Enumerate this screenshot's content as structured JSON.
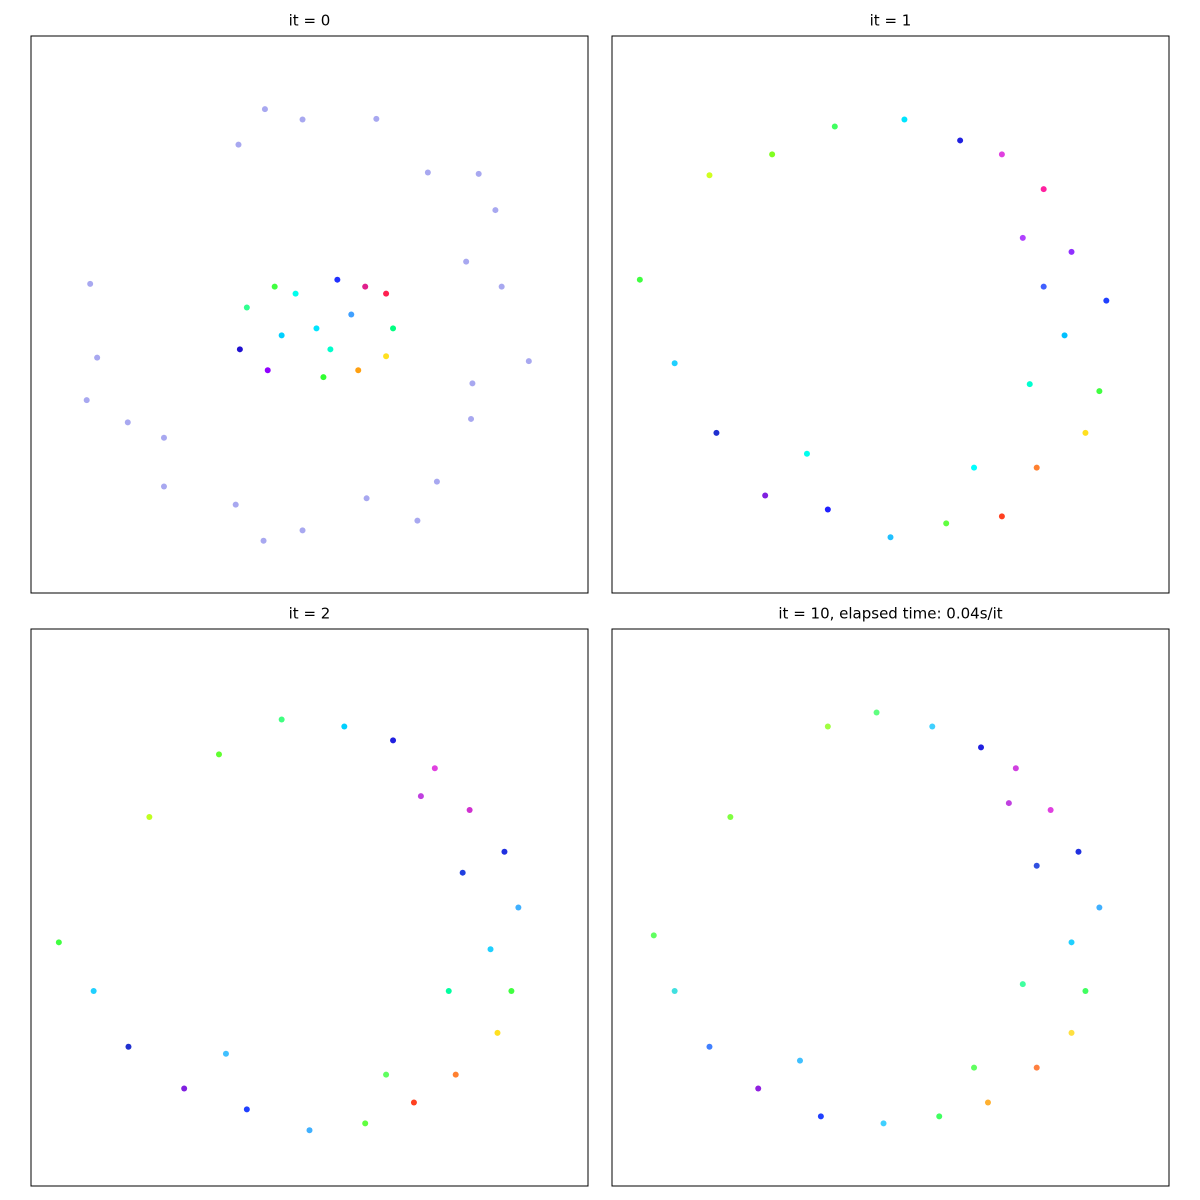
{
  "chart_data": [
    {
      "type": "scatter",
      "title": "it = 0",
      "xlim": [
        -4,
        4
      ],
      "ylim": [
        -4,
        4
      ],
      "x": [
        -0.1,
        0.96,
        1.7,
        2.67,
        2.76,
        3.15,
        2.32,
        1.83,
        0.82,
        -0.1,
        -1.06,
        -2.09,
        -2.61,
        -3.05,
        -3.15,
        -1.02,
        -0.64,
        2.43,
        2.34,
        1.55,
        -0.66,
        -2.09,
        -3.2,
        2.25,
        0.1,
        0.8,
        1.1,
        0.4,
        -0.5,
        -0.9,
        -1.0,
        -0.6,
        0.2,
        0.7,
        1.1,
        1.2,
        -0.2,
        0.3,
        0.6,
        -0.4
      ],
      "y": [
        2.8,
        2.81,
        2.04,
        1.5,
        0.4,
        -0.67,
        -1.5,
        -2.4,
        -2.64,
        -3.1,
        -2.73,
        -2.47,
        -1.55,
        -0.62,
        0.44,
        2.44,
        2.95,
        2.02,
        -0.99,
        -2.96,
        -3.25,
        -1.77,
        -1.23,
        0.76,
        -0.2,
        0.4,
        0.3,
        0.5,
        0.4,
        0.1,
        -0.5,
        -0.8,
        -0.9,
        -0.8,
        -0.6,
        -0.2,
        0.3,
        -0.5,
        0.0,
        -0.3
      ],
      "colors": [
        "#a8a8f0",
        "#a8a8f0",
        "#a8a8f0",
        "#a8a8f0",
        "#a8a8f0",
        "#a8a8f0",
        "#a8a8f0",
        "#a8a8f0",
        "#a8a8f0",
        "#a8a8f0",
        "#a8a8f0",
        "#a8a8f0",
        "#a8a8f0",
        "#a8a8f0",
        "#a8a8f0",
        "#a8a8f0",
        "#a8a8f0",
        "#a8a8f0",
        "#a8a8f0",
        "#a8a8f0",
        "#a8a8f0",
        "#a8a8f0",
        "#a8a8f0",
        "#a8a8f0",
        "#00e5ff",
        "#e0208c",
        "#ff2050",
        "#2030ff",
        "#40ff40",
        "#30ff90",
        "#2010d0",
        "#9000ff",
        "#30ff30",
        "#ffa010",
        "#ffe020",
        "#00ff80",
        "#00ffee",
        "#00ffcc",
        "#40a0ff",
        "#00d0ff"
      ]
    },
    {
      "type": "scatter",
      "title": "it = 1",
      "xlim": [
        -4,
        4
      ],
      "ylim": [
        -4,
        4
      ],
      "x": [
        -1.7,
        -0.8,
        0.2,
        1.0,
        1.6,
        2.2,
        2.6,
        3.1,
        2.5,
        3.0,
        2.8,
        2.1,
        1.6,
        0.8,
        0.0,
        -0.9,
        -1.8,
        -2.5,
        -3.1,
        -3.6,
        -2.6,
        2.0,
        1.2,
        -1.2,
        2.2,
        1.9
      ],
      "y": [
        2.3,
        2.7,
        2.8,
        2.5,
        2.3,
        1.8,
        0.9,
        0.2,
        -0.3,
        -1.1,
        -1.7,
        -2.2,
        -2.9,
        -3.0,
        -3.2,
        -2.8,
        -2.6,
        -1.7,
        -0.7,
        0.5,
        2.0,
        -1.0,
        -2.2,
        -2.0,
        0.4,
        1.1
      ],
      "colors": [
        "#80ff20",
        "#40ff60",
        "#00e5ff",
        "#2020e0",
        "#e040e0",
        "#ff20a0",
        "#9030ff",
        "#2040ff",
        "#00c0ff",
        "#40ff40",
        "#ffe020",
        "#ff8030",
        "#ff4020",
        "#60ff40",
        "#20c0ff",
        "#2020ff",
        "#8020e0",
        "#2030d0",
        "#20d0ff",
        "#40ff40",
        "#d0ff20",
        "#00ffd0",
        "#00ffff",
        "#00ffee",
        "#4060ff",
        "#b040ff"
      ]
    },
    {
      "type": "scatter",
      "title": "it = 2",
      "xlim": [
        -4,
        4
      ],
      "ylim": [
        -4,
        4
      ],
      "x": [
        -1.3,
        -0.4,
        0.5,
        1.2,
        1.8,
        2.3,
        2.8,
        3.0,
        2.6,
        2.9,
        2.7,
        2.1,
        1.5,
        0.8,
        0.0,
        -0.9,
        -1.8,
        -2.6,
        -3.1,
        -3.6,
        -2.3,
        2.0,
        1.1,
        -1.2,
        2.2,
        1.6
      ],
      "y": [
        2.2,
        2.7,
        2.6,
        2.4,
        2.0,
        1.4,
        0.8,
        0.0,
        -0.6,
        -1.2,
        -1.8,
        -2.4,
        -2.8,
        -3.1,
        -3.2,
        -2.9,
        -2.6,
        -2.0,
        -1.2,
        -0.5,
        1.3,
        -1.2,
        -2.4,
        -2.1,
        0.5,
        1.6
      ],
      "colors": [
        "#60ff30",
        "#40ff80",
        "#00d0ff",
        "#2020e0",
        "#e040e0",
        "#d030d0",
        "#2030e0",
        "#40b0ff",
        "#20d0ff",
        "#40ff40",
        "#ffe020",
        "#ff8030",
        "#ff4020",
        "#60ff40",
        "#40b0ff",
        "#2040ff",
        "#8020e0",
        "#2030d0",
        "#20d0ff",
        "#40ff40",
        "#c0ff20",
        "#00ffa0",
        "#60ff60",
        "#40c0ff",
        "#2040e0",
        "#c040e0"
      ]
    },
    {
      "type": "scatter",
      "title": "it = 10, elapsed time: 0.04s/it",
      "xlim": [
        -4,
        4
      ],
      "ylim": [
        -4,
        4
      ],
      "x": [
        -0.9,
        -0.2,
        0.6,
        1.3,
        1.8,
        2.3,
        2.7,
        3.0,
        2.6,
        2.8,
        2.6,
        2.1,
        1.4,
        0.7,
        -0.1,
        -1.0,
        -1.9,
        -2.6,
        -3.1,
        -3.4,
        -2.3,
        1.9,
        1.2,
        -1.3,
        2.1,
        1.7
      ],
      "y": [
        2.6,
        2.8,
        2.6,
        2.3,
        2.0,
        1.4,
        0.8,
        0.0,
        -0.5,
        -1.2,
        -1.8,
        -2.3,
        -2.8,
        -3.0,
        -3.1,
        -3.0,
        -2.6,
        -2.0,
        -1.2,
        -0.4,
        1.3,
        -1.1,
        -2.3,
        -2.2,
        0.6,
        1.5
      ],
      "colors": [
        "#a0ff40",
        "#60ff80",
        "#40d0ff",
        "#2020e0",
        "#d040e0",
        "#e040e0",
        "#2030e0",
        "#40b0ff",
        "#20d0ff",
        "#40ff60",
        "#ffe040",
        "#ff8040",
        "#ffb030",
        "#40ff60",
        "#40d0ff",
        "#2040ff",
        "#9020e0",
        "#4080ff",
        "#40e0e0",
        "#60ff60",
        "#80ff40",
        "#40ffa0",
        "#60ff60",
        "#40c0ff",
        "#3050e0",
        "#c040e0"
      ]
    }
  ]
}
